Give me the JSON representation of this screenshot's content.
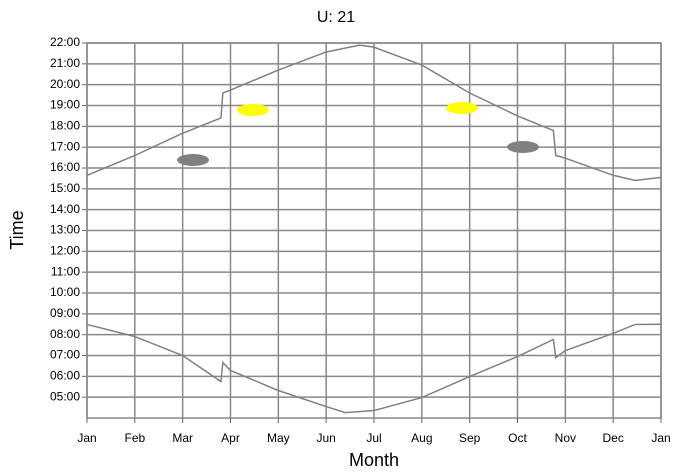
{
  "chart_data": {
    "type": "line",
    "title": "U: 21",
    "xlabel": "Month",
    "ylabel": "Time",
    "xlim": [
      0,
      12
    ],
    "ylim": [
      4,
      22
    ],
    "xticks": [
      {
        "value": 0,
        "label": "Jan"
      },
      {
        "value": 1,
        "label": "Feb"
      },
      {
        "value": 2,
        "label": "Mar"
      },
      {
        "value": 3,
        "label": "Apr"
      },
      {
        "value": 4,
        "label": "May"
      },
      {
        "value": 5,
        "label": "Jun"
      },
      {
        "value": 6,
        "label": "Jul"
      },
      {
        "value": 7,
        "label": "Aug"
      },
      {
        "value": 8,
        "label": "Sep"
      },
      {
        "value": 9,
        "label": "Oct"
      },
      {
        "value": 10,
        "label": "Nov"
      },
      {
        "value": 11,
        "label": "Dec"
      },
      {
        "value": 12,
        "label": "Jan"
      }
    ],
    "yticks": [
      {
        "value": 5,
        "label": "05:00"
      },
      {
        "value": 6,
        "label": "06:00"
      },
      {
        "value": 7,
        "label": "07:00"
      },
      {
        "value": 8,
        "label": "08:00"
      },
      {
        "value": 9,
        "label": "09:00"
      },
      {
        "value": 10,
        "label": "10:00"
      },
      {
        "value": 11,
        "label": "11:00"
      },
      {
        "value": 12,
        "label": "12:00"
      },
      {
        "value": 13,
        "label": "13:00"
      },
      {
        "value": 14,
        "label": "14:00"
      },
      {
        "value": 15,
        "label": "15:00"
      },
      {
        "value": 16,
        "label": "16:00"
      },
      {
        "value": 17,
        "label": "17:00"
      },
      {
        "value": 18,
        "label": "18:00"
      },
      {
        "value": 19,
        "label": "19:00"
      },
      {
        "value": 20,
        "label": "20:00"
      },
      {
        "value": 21,
        "label": "21:00"
      },
      {
        "value": 22,
        "label": "22:00"
      }
    ],
    "grid": true,
    "series": [
      {
        "color": "#808080",
        "x": [
          0,
          1,
          2,
          2.8,
          2.84,
          3,
          4,
          5,
          5.7,
          6,
          7,
          8,
          9,
          9.75,
          9.8,
          10,
          11,
          11.46,
          12
        ],
        "values": [
          15.65,
          16.6,
          17.67,
          18.4,
          19.6,
          19.74,
          20.7,
          21.57,
          21.9,
          21.8,
          20.94,
          19.6,
          18.5,
          17.8,
          16.6,
          16.47,
          15.65,
          15.4,
          15.55
        ]
      },
      {
        "color": "#808080",
        "x": [
          0,
          1,
          2,
          2.8,
          2.84,
          3,
          4,
          5,
          5.4,
          6,
          7,
          8,
          9,
          9.75,
          9.8,
          10,
          11,
          11.46,
          12
        ],
        "values": [
          8.49,
          7.91,
          7.0,
          5.75,
          6.66,
          6.28,
          5.32,
          4.55,
          4.26,
          4.36,
          4.98,
          5.99,
          6.95,
          7.77,
          6.9,
          7.24,
          8.06,
          8.49,
          8.5
        ]
      }
    ]
  }
}
